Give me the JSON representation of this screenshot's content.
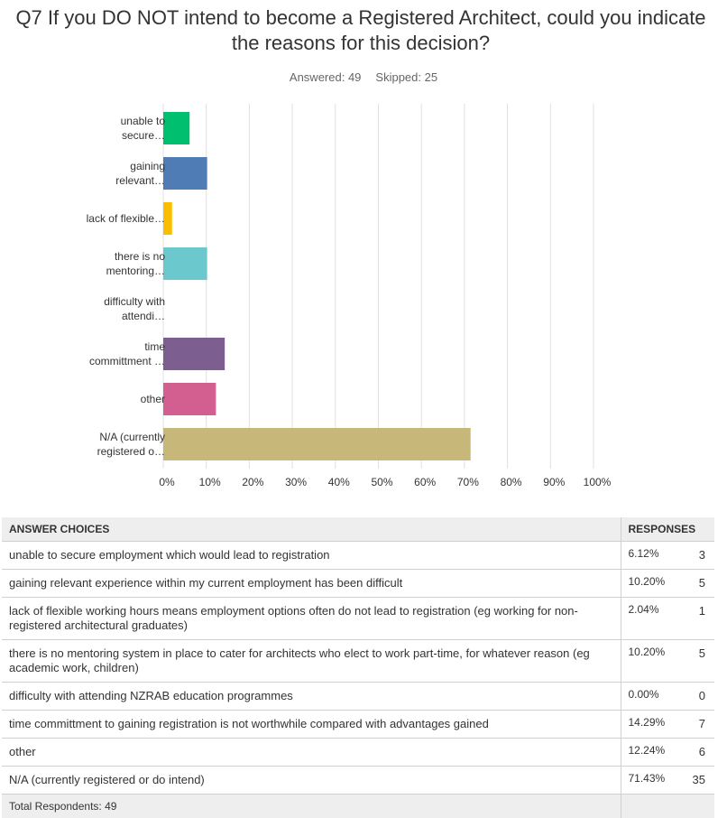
{
  "chart_data": {
    "type": "hbar",
    "title": "Q7 If you DO NOT intend to become a Registered Architect, could you indicate the reasons for this decision?",
    "subtitle": [
      "Answered: 49",
      "Skipped: 25"
    ],
    "categories": [
      "unable to secure…",
      "gaining relevant…",
      "lack of flexible…",
      "there is no mentoring…",
      "difficulty with attendi…",
      "time committment …",
      "other",
      "N/A (currently registered o…"
    ],
    "values": [
      6.12,
      10.2,
      2.04,
      10.2,
      0,
      14.29,
      12.24,
      71.43
    ],
    "colors": [
      "#00bf6f",
      "#507cb6",
      "#f9be00",
      "#6bc8cd",
      "#a58fc2",
      "#7d5e90",
      "#d25f90",
      "#c7b879"
    ],
    "xlim": [
      0,
      100
    ],
    "xticks": [
      {
        "value": 0,
        "label": "0%"
      },
      {
        "value": 10,
        "label": "10%"
      },
      {
        "value": 20,
        "label": "20%"
      },
      {
        "value": 30,
        "label": "30%"
      },
      {
        "value": 40,
        "label": "40%"
      },
      {
        "value": 50,
        "label": "50%"
      },
      {
        "value": 60,
        "label": "60%"
      },
      {
        "value": 70,
        "label": "70%"
      },
      {
        "value": 80,
        "label": "80%"
      },
      {
        "value": 90,
        "label": "90%"
      },
      {
        "value": 100,
        "label": "100%"
      }
    ],
    "grid": true
  },
  "table": {
    "headers": [
      "ANSWER CHOICES",
      "RESPONSES"
    ],
    "rows": [
      [
        "unable to secure employment which would lead to registration",
        "6.12%",
        3
      ],
      [
        "gaining relevant experience within my current employment has been difficult",
        "10.20%",
        5
      ],
      [
        "lack of flexible working hours means employment options often do not lead to registration (eg working for non-registered architectural graduates)",
        "2.04%",
        1
      ],
      [
        "there is no mentoring system in place to cater for architects who elect to work part-time, for whatever reason (eg academic work, children)",
        "10.20%",
        5
      ],
      [
        "difficulty with attending NZRAB education programmes",
        "0.00%",
        0
      ],
      [
        "time committment to gaining registration is not worthwhile compared with advantages gained",
        "14.29%",
        7
      ],
      [
        "other",
        "12.24%",
        6
      ],
      [
        "N/A (currently registered or do intend)",
        "71.43%",
        35
      ]
    ],
    "footer": "Total Respondents: 49"
  }
}
